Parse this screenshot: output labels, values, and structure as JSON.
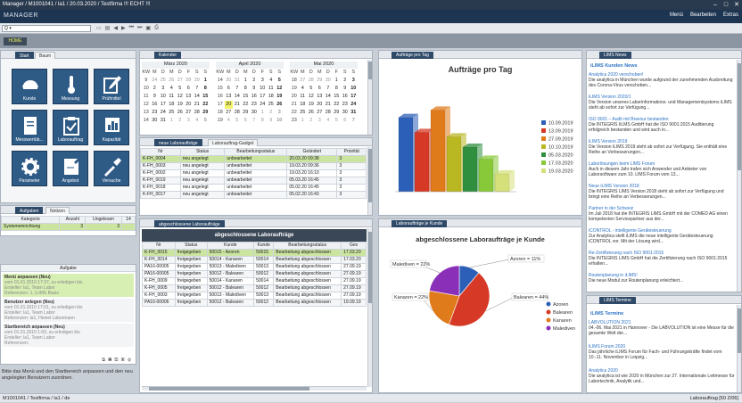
{
  "window": {
    "title": "Manager / M1001041 / la1 / 20.03.2020 / Testfirma !!! ECHT !!!"
  },
  "app": {
    "brand": "MANAGER",
    "menu": [
      "Menü",
      "Bearbeiten",
      "Extras"
    ],
    "home": "HOME",
    "search_value": "Q ▾"
  },
  "left": {
    "tabs": [
      "Start",
      "Baum"
    ],
    "tiles": [
      "Kunde",
      "Messung",
      "Prüfmittel",
      "Messwertüb...",
      "Laborauftrag",
      "Kapazität",
      "Parameter",
      "Angebot",
      "Versuche"
    ],
    "task_tabs": [
      "Aufgaben",
      "Notizen"
    ],
    "task_cols": [
      "Kategorie",
      "Anzahl",
      "Ungelesen",
      "14"
    ],
    "task_row": {
      "cat": "Systemeinrichtung",
      "count": "3",
      "unread": "3"
    },
    "todo_title": "Aufgabe",
    "todos": [
      {
        "title": "Menü anpassen (Neu)",
        "lines": [
          "vom 01.01.2010 17:37, zu erledigen bis",
          "Ersteller: la1, Team Labor",
          "Referenzen: 1, ILIMS Basis"
        ]
      },
      {
        "title": "Benutzer anlegen (Neu)",
        "lines": [
          "vom 01.01.2010 17:01, zu erledigen bis",
          "Ersteller: la1, Team Labor",
          "Referenzen: la1, Heinel Labormann"
        ]
      },
      {
        "title": "Startbereich anpassen (Neu)",
        "lines": [
          "vom 01.01.2010 1:00, zu erledigen bis",
          "Ersteller: la1, Team Labor",
          "Referenzen:"
        ]
      }
    ],
    "footer": "Bitte das Menü und den Startbereich anpassen und den neu angelegten Benutzern zuordnen."
  },
  "calendar": {
    "title": "Kalender",
    "months": [
      {
        "name": "März 2020",
        "days": [
          [
            "KW",
            "M",
            "D",
            "M",
            "D",
            "F",
            "S",
            "S"
          ],
          [
            "9",
            "24",
            "25",
            "26",
            "27",
            "28",
            "29",
            "1"
          ],
          [
            "10",
            "2",
            "3",
            "4",
            "5",
            "6",
            "7",
            "8"
          ],
          [
            "11",
            "9",
            "10",
            "11",
            "12",
            "13",
            "14",
            "15"
          ],
          [
            "12",
            "16",
            "17",
            "18",
            "19",
            "20",
            "21",
            "22"
          ],
          [
            "13",
            "23",
            "24",
            "25",
            "26",
            "27",
            "28",
            "29"
          ],
          [
            "14",
            "30",
            "31",
            "1",
            "2",
            "3",
            "4",
            "5"
          ]
        ]
      },
      {
        "name": "April 2020",
        "days": [
          [
            "KW",
            "M",
            "D",
            "M",
            "D",
            "F",
            "S",
            "S"
          ],
          [
            "14",
            "30",
            "31",
            "1",
            "2",
            "3",
            "4",
            "5"
          ],
          [
            "15",
            "6",
            "7",
            "8",
            "9",
            "10",
            "11",
            "12"
          ],
          [
            "16",
            "13",
            "14",
            "15",
            "16",
            "17",
            "18",
            "19"
          ],
          [
            "17",
            "20",
            "21",
            "22",
            "23",
            "24",
            "25",
            "26"
          ],
          [
            "18",
            "27",
            "28",
            "29",
            "30",
            "1",
            "2",
            "3"
          ],
          [
            "19",
            "4",
            "5",
            "6",
            "7",
            "8",
            "9",
            "10"
          ]
        ]
      },
      {
        "name": "Mai 2020",
        "days": [
          [
            "KW",
            "M",
            "D",
            "M",
            "D",
            "F",
            "S",
            "S"
          ],
          [
            "18",
            "27",
            "28",
            "29",
            "30",
            "1",
            "2",
            "3"
          ],
          [
            "19",
            "4",
            "5",
            "6",
            "7",
            "8",
            "9",
            "10"
          ],
          [
            "20",
            "11",
            "12",
            "13",
            "14",
            "15",
            "16",
            "17"
          ],
          [
            "21",
            "18",
            "19",
            "20",
            "21",
            "22",
            "23",
            "24"
          ],
          [
            "22",
            "25",
            "26",
            "27",
            "28",
            "29",
            "30",
            "31"
          ],
          [
            "23",
            "1",
            "2",
            "3",
            "4",
            "5",
            "6",
            "7"
          ]
        ]
      }
    ]
  },
  "neue": {
    "tabs": [
      "neue Laboraufträge",
      "Laborauftrag-Gadget"
    ],
    "cols": [
      "Nr",
      "Status",
      "Bearbeitungsstatus",
      "Geändert",
      "Priorität"
    ],
    "rows": [
      [
        "K-FH_0004",
        "neu angelegt",
        "unbearbeitet",
        "20.03.20 09:38",
        "3"
      ],
      [
        "K-FH_0003",
        "neu angelegt",
        "unbearbeitet",
        "19.03.20 09:36",
        "3"
      ],
      [
        "K-FH_0002",
        "neu angelegt",
        "unbearbeitet",
        "19.03.20 16:10",
        "3"
      ],
      [
        "K-FH_0019",
        "neu angelegt",
        "unbearbeitet",
        "05.03.20 16:45",
        "3"
      ],
      [
        "K-FH_0018",
        "neu angelegt",
        "unbearbeitet",
        "05.02.20 16:45",
        "3"
      ],
      [
        "K-FH_0017",
        "neu angelegt",
        "unbearbeitet",
        "05.02.20 16:43",
        "3"
      ]
    ]
  },
  "abgeschlossen": {
    "tab": "abgeschlossene Laboraufträge",
    "header": "abgeschlossene Laboraufträge",
    "cols": [
      "Nr",
      "Status",
      "Kunde",
      "Kunde",
      "Bearbeitungsstatus",
      "Ges"
    ],
    "rows": [
      [
        "K-FH_0015",
        "freigegeben",
        "50015 - Azoren",
        "50015",
        "Bearbeitung abgeschlossen",
        "17.03.20"
      ],
      [
        "K-FH_0014",
        "freigegeben",
        "50014 - Kanaren",
        "50014",
        "Bearbeitung abgeschlossen",
        "17.03.20"
      ],
      [
        "PA16-00005",
        "freigegeben",
        "50013 - Malediven",
        "50013",
        "Bearbeitung abgeschlossen",
        "27.09.19"
      ],
      [
        "PA16-00005",
        "freigegeben",
        "50012 - Balearen",
        "50012",
        "Bearbeitung abgeschlossen",
        "27.09.19"
      ],
      [
        "K-FH_0009",
        "freigegeben",
        "50014 - Kanaren",
        "50014",
        "Bearbeitung abgeschlossen",
        "27.09.19"
      ],
      [
        "K-FH_0005",
        "freigegeben",
        "50012 - Balearen",
        "50012",
        "Bearbeitung abgeschlossen",
        "27.09.19"
      ],
      [
        "K-FH_0003",
        "freigegeben",
        "50013 - Malediven",
        "50013",
        "Bearbeitung abgeschlossen",
        "27.09.19"
      ],
      [
        "PA16-00006",
        "freigegeben",
        "50012 - Balearen",
        "50012",
        "Bearbeitung abgeschlossen",
        "19.09.19"
      ]
    ]
  },
  "chart_data": [
    {
      "type": "bar",
      "tab": "Aufträge pro Tag",
      "title": "Aufträge pro Tag",
      "series": [
        {
          "name": "10.09.2019",
          "values": [
            5
          ],
          "color": "#2b5fb8"
        },
        {
          "name": "13.09.2019",
          "values": [
            4
          ],
          "color": "#d63a26"
        },
        {
          "name": "27.09.2019",
          "values": [
            5.5
          ],
          "color": "#e07b1c"
        },
        {
          "name": "10.10.2019",
          "values": [
            3.7
          ],
          "color": "#b9b722"
        },
        {
          "name": "05.03.2020",
          "values": [
            3
          ],
          "color": "#2f8f3f"
        },
        {
          "name": "17.03.2020",
          "values": [
            2.2
          ],
          "color": "#88c93a"
        },
        {
          "name": "19.03.2020",
          "values": [
            1.2
          ],
          "color": "#d6e07a"
        }
      ],
      "ylim": [
        0,
        6
      ]
    },
    {
      "type": "pie",
      "tab": "Laboraufträge je Kunde",
      "title": "abgeschlossene Laboraufträge je Kunde",
      "categories": [
        "Azoren",
        "Balearen",
        "Kanaren",
        "Malediven"
      ],
      "values": [
        11,
        44,
        22,
        22
      ],
      "labels": [
        "Azoren = 11%",
        "Balearen = 44%",
        "Kanaren = 22%",
        "Malediven = 22%"
      ],
      "colors": [
        "#2b5fb8",
        "#d63a26",
        "#e07b1c",
        "#8a2fb8"
      ]
    }
  ],
  "lims": {
    "tab": "LIMS News",
    "section": "iLIMS Kunden News",
    "items": [
      {
        "h": "Analytica 2020 verschoben!",
        "t": "Die analytica in München wurde aufgrund der zunehmenden Ausbreitung des Corona-Virus verschoben..."
      },
      {
        "h": "iLIMS Version 2020/1",
        "t": "Die Version unseres Laborinformations- und Managementsystems iLIMS steht ab sofort zur Verfügung..."
      },
      {
        "h": "ISO 9001 – Audit mit Bravour bestanden",
        "t": "Die INTEGRIS IiLMS GmbH hat die ISO 9001:2015 Auditierung erfolgreich bestanden und wird auch in..."
      },
      {
        "h": "iLIMS Version 2019",
        "t": "Die Version iLIMS 2019 steht ab sofort zur Verfügung. Sie enthält eine Reihe an Verbesserungen..."
      },
      {
        "h": "Laborlösungen beim LIMS Forum",
        "t": "Auch in diesem Jahr trafen sich Anwender und Anbieter von Laborsoftware zum 10. LIMS Forum vom 13..."
      },
      {
        "h": "Neue iLIMS Version 2018",
        "t": "Die INTEGRIS LIMS Version 2018 steht ab sofort zur Verfügung und bringt eine Reihe an Verbesserungen..."
      },
      {
        "h": "Partner in der Schweiz",
        "t": "Im Juli 2018 hat die INTEGRIS LIMS GmbH mit der COMED AG einen kompetenten Servicepartner aus der..."
      },
      {
        "h": "iCONTROL - intelligente Gerätesteuerung",
        "t": "Zur Analytica stellt iLIMS die neue intelligente Gerätesteuerung iCONTROL vor. Mit der Lösung wird..."
      },
      {
        "h": "Re-Zertifizierung nach ISO 9001:2015",
        "t": "Die INTEGRIS LIMS GmbH hat die Zertifizierung nach ISO 9001:2015 erhalten..."
      },
      {
        "h": "Routenplanung in iLIMS!",
        "t": "Die neue Modul zur Routenplanung erleichtert..."
      }
    ]
  },
  "termine": {
    "tab": "LIMS Termine",
    "section": "iLIMS Termine",
    "items": [
      {
        "h": "LABVOLUTION 2021",
        "t": "04.-06. Mai 2021 in Hannover - Die LABVOLUTION ist eine Messe für die gesamte Welt der..."
      },
      {
        "h": "iLIMS Forum 2020",
        "t": "Das jährliche iLIMS Forum für Fach- und Führungskräfte findet vom 10.-11. November in Leipzig..."
      },
      {
        "h": "Analytica 2020",
        "t": "Die analytica ist wie 2020 in München zur 27. Internationale Leitmesse für Labortechnik, Analytik und..."
      }
    ]
  },
  "status": {
    "left": "M1001041 / Testfirma / la1 / de",
    "right": "Laborauftrag [50 Z/06]"
  }
}
